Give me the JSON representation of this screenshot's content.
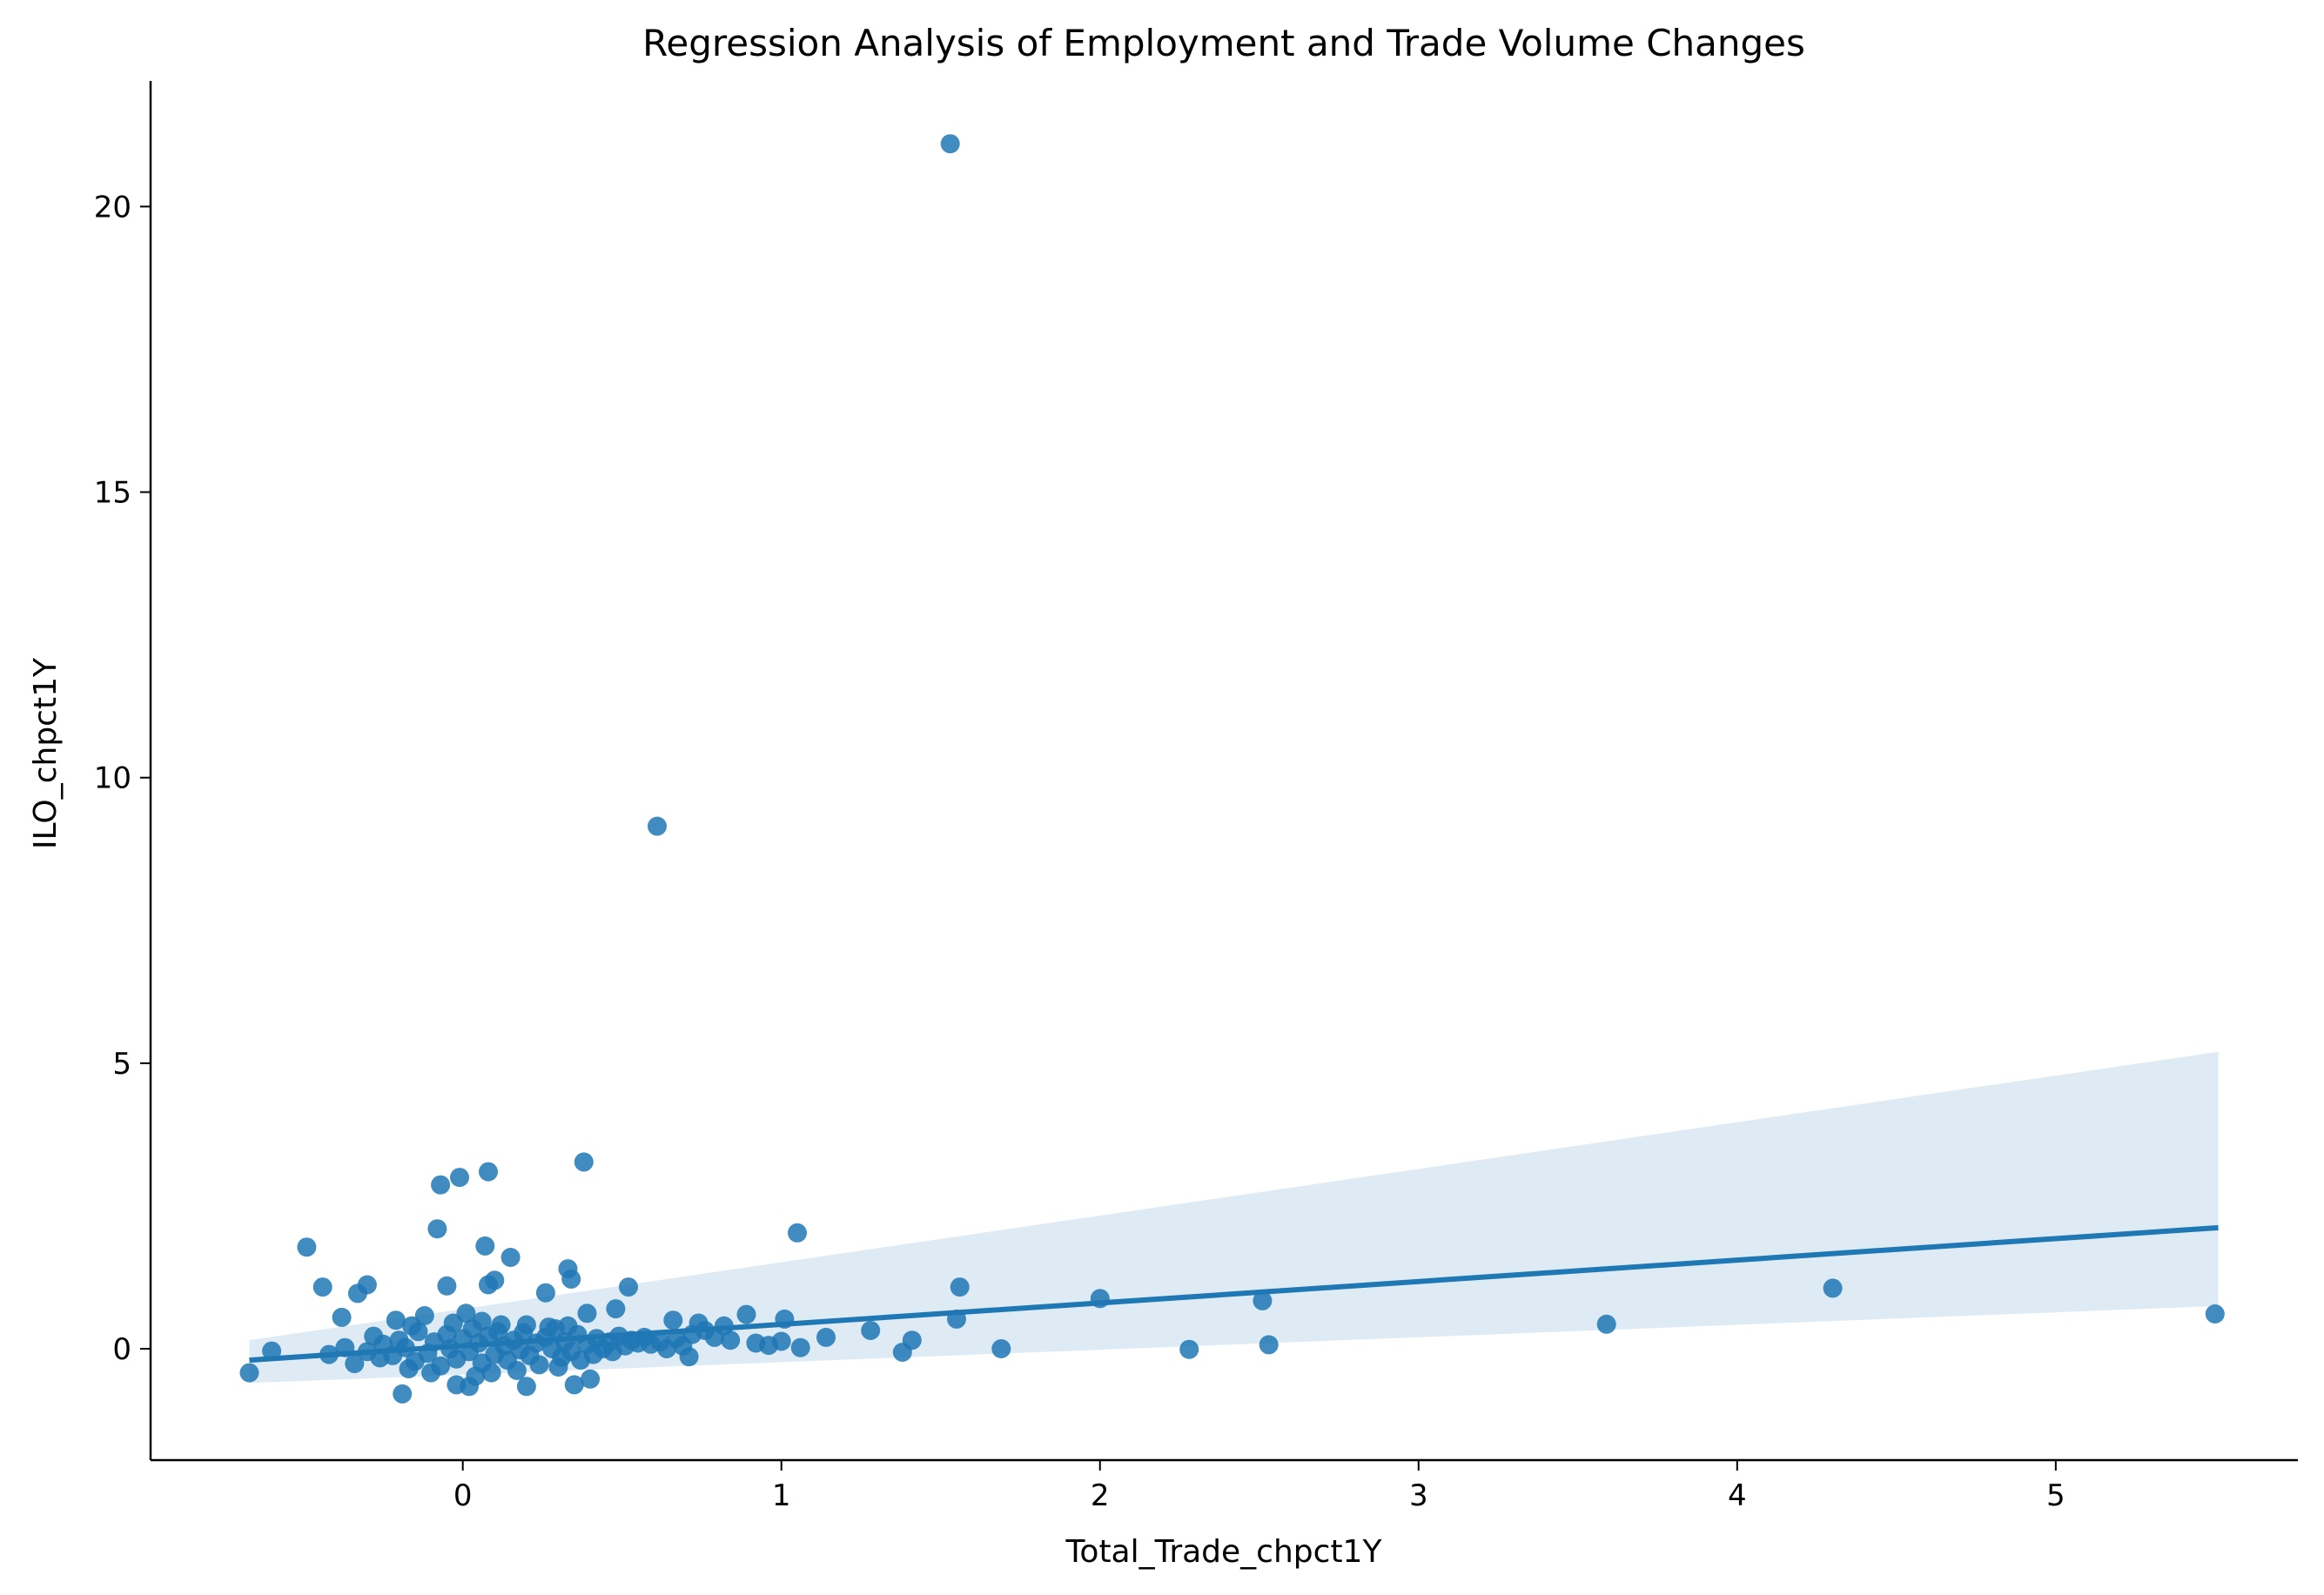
{
  "chart_data": {
    "type": "scatter",
    "title": "Regression Analysis of Employment and Trade Volume Changes",
    "xlabel": "Total_Trade_chpct1Y",
    "ylabel": "ILO_chpct1Y",
    "xlim": [
      -0.98,
      5.76
    ],
    "ylim": [
      -1.95,
      22.2
    ],
    "x_ticks": [
      0,
      1,
      2,
      3,
      4,
      5
    ],
    "y_ticks": [
      0,
      5,
      10,
      15,
      20
    ],
    "grid": false,
    "legend": "none",
    "colors": {
      "points": "#1f77b4",
      "line": "#1f77b4",
      "band": "#1f77b4"
    },
    "regression": {
      "x": [
        -0.67,
        5.51
      ],
      "y": [
        -0.2,
        2.12
      ],
      "ci_lower": [
        -0.6,
        0.75
      ],
      "ci_upper": [
        0.15,
        5.2
      ]
    },
    "points": [
      {
        "x": 1.53,
        "y": 21.1
      },
      {
        "x": 0.61,
        "y": 9.15
      },
      {
        "x": 0.38,
        "y": 3.27
      },
      {
        "x": 0.08,
        "y": 3.1
      },
      {
        "x": -0.01,
        "y": 3.0
      },
      {
        "x": -0.07,
        "y": 2.87
      },
      {
        "x": -0.08,
        "y": 2.1
      },
      {
        "x": 1.05,
        "y": 2.03
      },
      {
        "x": -0.49,
        "y": 1.78
      },
      {
        "x": 0.07,
        "y": 1.8
      },
      {
        "x": 0.15,
        "y": 1.6
      },
      {
        "x": 0.33,
        "y": 1.4
      },
      {
        "x": -0.44,
        "y": 1.08
      },
      {
        "x": -0.3,
        "y": 1.12
      },
      {
        "x": -0.33,
        "y": 0.97
      },
      {
        "x": -0.05,
        "y": 1.1
      },
      {
        "x": 0.1,
        "y": 1.2
      },
      {
        "x": 0.08,
        "y": 1.12
      },
      {
        "x": 0.34,
        "y": 1.22
      },
      {
        "x": 0.26,
        "y": 0.98
      },
      {
        "x": 0.52,
        "y": 1.08
      },
      {
        "x": 0.48,
        "y": 0.7
      },
      {
        "x": 1.56,
        "y": 1.08
      },
      {
        "x": 4.3,
        "y": 1.06
      },
      {
        "x": 2.0,
        "y": 0.88
      },
      {
        "x": 2.51,
        "y": 0.84
      },
      {
        "x": 3.59,
        "y": 0.43
      },
      {
        "x": 5.5,
        "y": 0.61
      },
      {
        "x": 1.55,
        "y": 0.52
      },
      {
        "x": 1.01,
        "y": 0.52
      },
      {
        "x": 0.89,
        "y": 0.6
      },
      {
        "x": 0.66,
        "y": 0.5
      },
      {
        "x": 0.74,
        "y": 0.45
      },
      {
        "x": 0.82,
        "y": 0.4
      },
      {
        "x": 1.28,
        "y": 0.32
      },
      {
        "x": 1.41,
        "y": 0.15
      },
      {
        "x": 1.38,
        "y": -0.06
      },
      {
        "x": 1.14,
        "y": 0.2
      },
      {
        "x": 1.06,
        "y": 0.02
      },
      {
        "x": 0.96,
        "y": 0.06
      },
      {
        "x": 1.0,
        "y": 0.13
      },
      {
        "x": 1.69,
        "y": 0.0
      },
      {
        "x": 2.28,
        "y": -0.01
      },
      {
        "x": 2.53,
        "y": 0.07
      },
      {
        "x": 0.71,
        "y": -0.14
      },
      {
        "x": -0.6,
        "y": -0.04
      },
      {
        "x": -0.67,
        "y": -0.42
      },
      {
        "x": -0.38,
        "y": 0.55
      },
      {
        "x": -0.21,
        "y": 0.5
      },
      {
        "x": -0.12,
        "y": 0.58
      },
      {
        "x": 0.01,
        "y": 0.62
      },
      {
        "x": 0.06,
        "y": 0.48
      },
      {
        "x": 0.2,
        "y": 0.42
      },
      {
        "x": 0.39,
        "y": 0.62
      },
      {
        "x": -0.19,
        "y": -0.79
      },
      {
        "x": -0.02,
        "y": -0.63
      },
      {
        "x": 0.02,
        "y": -0.66
      },
      {
        "x": 0.2,
        "y": -0.66
      },
      {
        "x": 0.35,
        "y": -0.63
      },
      {
        "x": 0.4,
        "y": -0.53
      },
      {
        "x": 0.09,
        "y": -0.42
      },
      {
        "x": -0.17,
        "y": -0.35
      },
      {
        "x": 0.3,
        "y": -0.32
      },
      {
        "x": -0.42,
        "y": -0.1
      },
      {
        "x": -0.37,
        "y": 0.02
      },
      {
        "x": -0.34,
        "y": -0.26
      },
      {
        "x": -0.3,
        "y": -0.05
      },
      {
        "x": -0.28,
        "y": 0.22
      },
      {
        "x": -0.25,
        "y": 0.08
      },
      {
        "x": -0.22,
        "y": -0.12
      },
      {
        "x": -0.2,
        "y": 0.15
      },
      {
        "x": -0.18,
        "y": 0.02
      },
      {
        "x": -0.15,
        "y": -0.22
      },
      {
        "x": -0.14,
        "y": 0.3
      },
      {
        "x": -0.11,
        "y": -0.08
      },
      {
        "x": -0.09,
        "y": 0.12
      },
      {
        "x": -0.07,
        "y": -0.3
      },
      {
        "x": -0.05,
        "y": 0.25
      },
      {
        "x": -0.04,
        "y": 0.0
      },
      {
        "x": -0.02,
        "y": -0.18
      },
      {
        "x": 0.0,
        "y": 0.18
      },
      {
        "x": 0.02,
        "y": -0.05
      },
      {
        "x": 0.03,
        "y": 0.35
      },
      {
        "x": 0.05,
        "y": 0.1
      },
      {
        "x": 0.06,
        "y": -0.25
      },
      {
        "x": 0.08,
        "y": 0.22
      },
      {
        "x": 0.1,
        "y": -0.1
      },
      {
        "x": 0.11,
        "y": 0.3
      },
      {
        "x": 0.13,
        "y": 0.05
      },
      {
        "x": 0.14,
        "y": -0.2
      },
      {
        "x": 0.16,
        "y": 0.15
      },
      {
        "x": 0.18,
        "y": -0.02
      },
      {
        "x": 0.19,
        "y": 0.28
      },
      {
        "x": 0.21,
        "y": -0.12
      },
      {
        "x": 0.23,
        "y": 0.1
      },
      {
        "x": 0.24,
        "y": -0.28
      },
      {
        "x": 0.26,
        "y": 0.2
      },
      {
        "x": 0.28,
        "y": 0.0
      },
      {
        "x": 0.29,
        "y": 0.35
      },
      {
        "x": 0.31,
        "y": -0.15
      },
      {
        "x": 0.32,
        "y": 0.12
      },
      {
        "x": 0.34,
        "y": -0.05
      },
      {
        "x": 0.36,
        "y": 0.25
      },
      {
        "x": 0.37,
        "y": -0.2
      },
      {
        "x": 0.39,
        "y": 0.08
      },
      {
        "x": 0.41,
        "y": -0.1
      },
      {
        "x": 0.42,
        "y": 0.18
      },
      {
        "x": 0.44,
        "y": 0.0
      },
      {
        "x": 0.46,
        "y": 0.12
      },
      {
        "x": 0.47,
        "y": -0.05
      },
      {
        "x": 0.49,
        "y": 0.22
      },
      {
        "x": 0.51,
        "y": 0.05
      },
      {
        "x": 0.53,
        "y": 0.15
      },
      {
        "x": 0.55,
        "y": 0.1
      },
      {
        "x": 0.57,
        "y": 0.2
      },
      {
        "x": 0.59,
        "y": 0.08
      },
      {
        "x": 0.62,
        "y": 0.12
      },
      {
        "x": 0.64,
        "y": 0.0
      },
      {
        "x": 0.67,
        "y": 0.18
      },
      {
        "x": 0.69,
        "y": 0.05
      },
      {
        "x": 0.72,
        "y": 0.25
      },
      {
        "x": 0.76,
        "y": 0.32
      },
      {
        "x": 0.79,
        "y": 0.2
      },
      {
        "x": 0.84,
        "y": 0.15
      },
      {
        "x": 0.92,
        "y": 0.1
      },
      {
        "x": -0.26,
        "y": -0.16
      },
      {
        "x": -0.16,
        "y": 0.4
      },
      {
        "x": -0.03,
        "y": 0.45
      },
      {
        "x": 0.12,
        "y": 0.42
      },
      {
        "x": 0.27,
        "y": 0.38
      },
      {
        "x": 0.33,
        "y": 0.4
      },
      {
        "x": -0.1,
        "y": -0.42
      },
      {
        "x": 0.17,
        "y": -0.38
      },
      {
        "x": 0.04,
        "y": -0.48
      }
    ]
  }
}
